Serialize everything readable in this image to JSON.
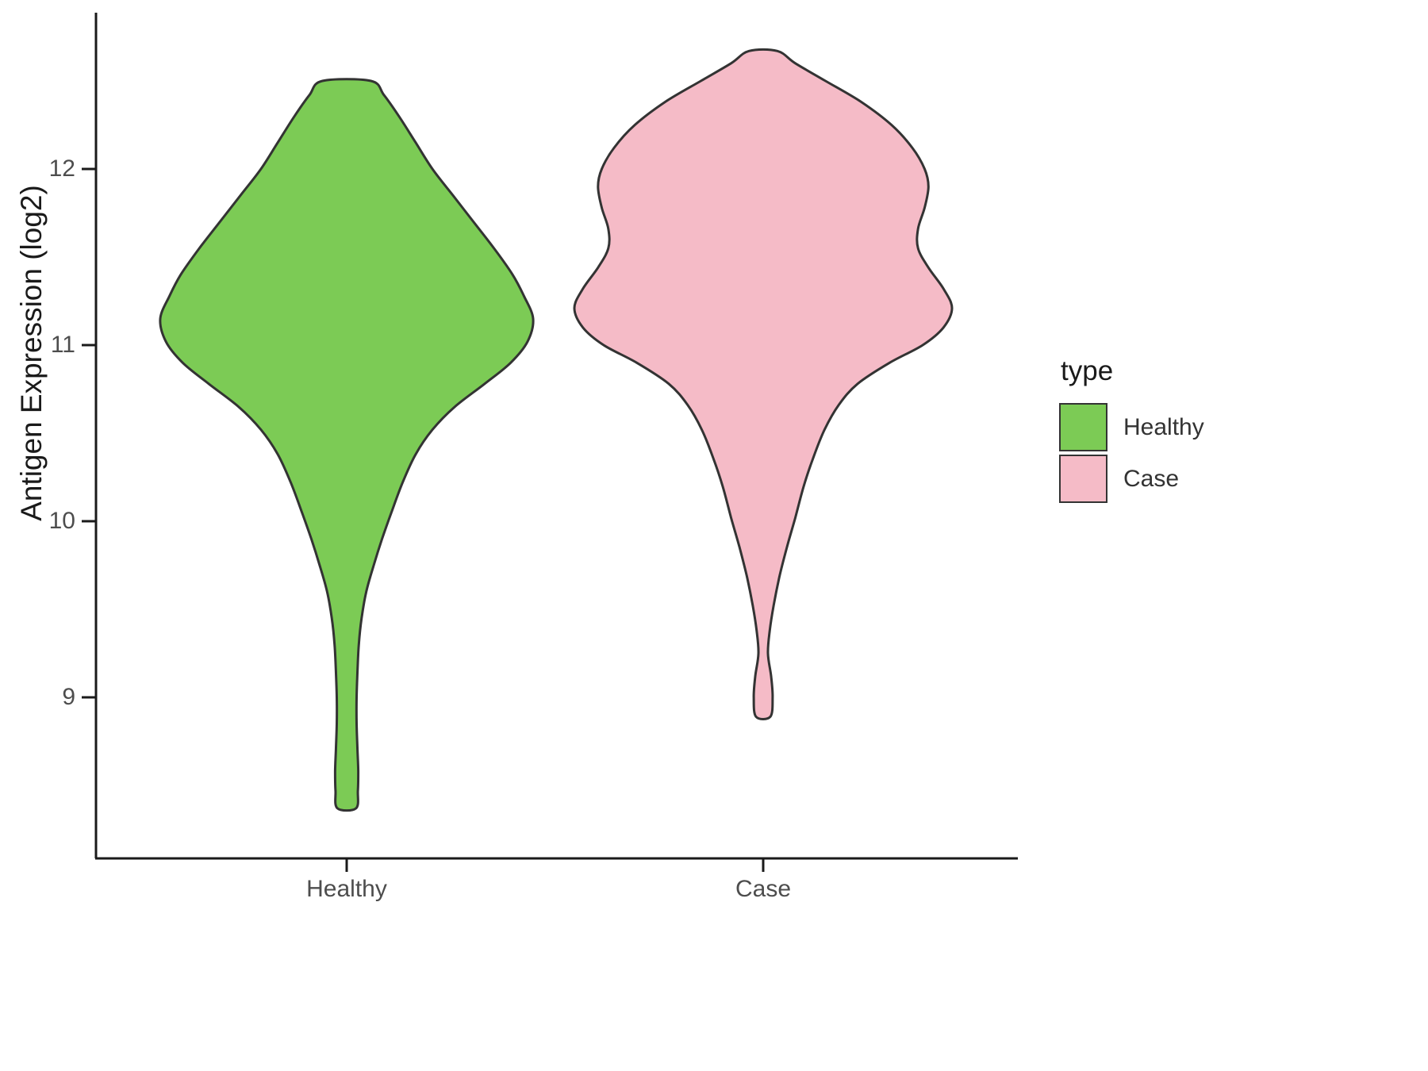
{
  "chart_data": {
    "type": "violin",
    "title": "",
    "xlabel": "",
    "ylabel": "Antigen Expression (log2)",
    "ylim": [
      8.2,
      12.8
    ],
    "y_ticks": [
      12,
      11,
      10,
      9
    ],
    "categories": [
      "Healthy",
      "Case"
    ],
    "legend_title": "type",
    "legend_position": "right",
    "grid": false,
    "outline_color": "#333333",
    "axis_color": "#1a1a1a",
    "series": [
      {
        "name": "Healthy",
        "color": "#7CCB55",
        "profile": [
          [
            12.5,
            0.13
          ],
          [
            12.42,
            0.2
          ],
          [
            12.3,
            0.28
          ],
          [
            12.15,
            0.37
          ],
          [
            12.0,
            0.46
          ],
          [
            11.85,
            0.57
          ],
          [
            11.7,
            0.68
          ],
          [
            11.55,
            0.79
          ],
          [
            11.4,
            0.89
          ],
          [
            11.28,
            0.95
          ],
          [
            11.15,
            1.0
          ],
          [
            11.02,
            0.97
          ],
          [
            10.9,
            0.88
          ],
          [
            10.78,
            0.74
          ],
          [
            10.65,
            0.58
          ],
          [
            10.52,
            0.46
          ],
          [
            10.38,
            0.37
          ],
          [
            10.22,
            0.3
          ],
          [
            10.05,
            0.24
          ],
          [
            9.9,
            0.19
          ],
          [
            9.75,
            0.145
          ],
          [
            9.6,
            0.105
          ],
          [
            9.45,
            0.08
          ],
          [
            9.3,
            0.065
          ],
          [
            9.15,
            0.058
          ],
          [
            9.0,
            0.053
          ],
          [
            8.85,
            0.053
          ],
          [
            8.7,
            0.058
          ],
          [
            8.58,
            0.062
          ],
          [
            8.47,
            0.06
          ],
          [
            8.37,
            0.05
          ]
        ]
      },
      {
        "name": "Case",
        "color": "#F5BBC7",
        "profile": [
          [
            12.67,
            0.075
          ],
          [
            12.6,
            0.17
          ],
          [
            12.5,
            0.33
          ],
          [
            12.38,
            0.52
          ],
          [
            12.25,
            0.68
          ],
          [
            12.12,
            0.79
          ],
          [
            12.0,
            0.855
          ],
          [
            11.9,
            0.875
          ],
          [
            11.78,
            0.855
          ],
          [
            11.66,
            0.82
          ],
          [
            11.55,
            0.82
          ],
          [
            11.44,
            0.875
          ],
          [
            11.32,
            0.955
          ],
          [
            11.21,
            1.0
          ],
          [
            11.1,
            0.955
          ],
          [
            11.0,
            0.845
          ],
          [
            10.9,
            0.67
          ],
          [
            10.78,
            0.5
          ],
          [
            10.66,
            0.4
          ],
          [
            10.52,
            0.325
          ],
          [
            10.36,
            0.265
          ],
          [
            10.2,
            0.215
          ],
          [
            10.02,
            0.17
          ],
          [
            9.85,
            0.125
          ],
          [
            9.68,
            0.085
          ],
          [
            9.52,
            0.055
          ],
          [
            9.38,
            0.035
          ],
          [
            9.25,
            0.025
          ],
          [
            9.12,
            0.042
          ],
          [
            9.0,
            0.05
          ],
          [
            8.89,
            0.038
          ]
        ]
      }
    ]
  }
}
